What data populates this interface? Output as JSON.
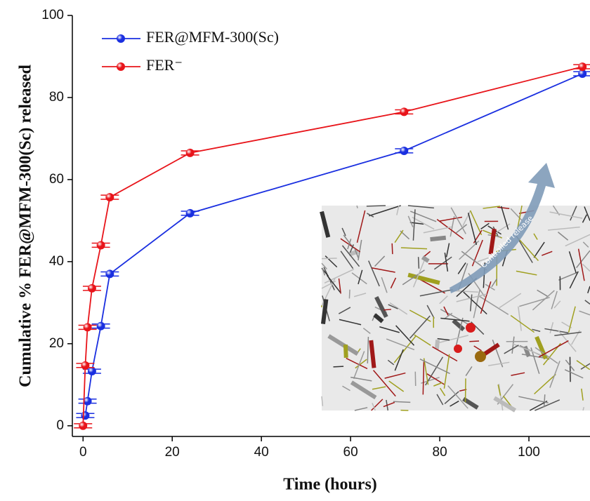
{
  "chart_data": {
    "type": "line",
    "x_label": "Time (hours)",
    "y_label": "Cumulative % FER@MFM-300(Sc) released",
    "annotation": "Controlled release",
    "xlim": [
      -2.4,
      113.7
    ],
    "ylim": [
      -2.6,
      100
    ],
    "xticks": [
      0,
      20,
      40,
      60,
      80,
      100
    ],
    "yticks": [
      0,
      20,
      40,
      60,
      80,
      100
    ],
    "legend": "upper left",
    "series": [
      {
        "name": "FER@MFM-300(Sc)",
        "color": "#1a2fe0",
        "x": [
          0.5,
          1,
          2,
          4,
          6,
          24,
          72,
          112
        ],
        "values": [
          2.5,
          6,
          13.3,
          24.3,
          37,
          51.8,
          67,
          85.8
        ],
        "errors": [
          0.5,
          0.5,
          0.5,
          0.5,
          0.5,
          0.5,
          0.5,
          0.5
        ]
      },
      {
        "name": "FER⁻",
        "color": "#e8141a",
        "x": [
          0,
          0.5,
          1,
          2,
          4,
          6,
          24,
          72,
          112
        ],
        "values": [
          0,
          14.7,
          24,
          33.5,
          44,
          55.7,
          66.5,
          76.5,
          87.5
        ],
        "errors": [
          0.5,
          0.5,
          0.5,
          0.5,
          0.5,
          0.5,
          0.5,
          0.5,
          0.5
        ]
      }
    ]
  }
}
